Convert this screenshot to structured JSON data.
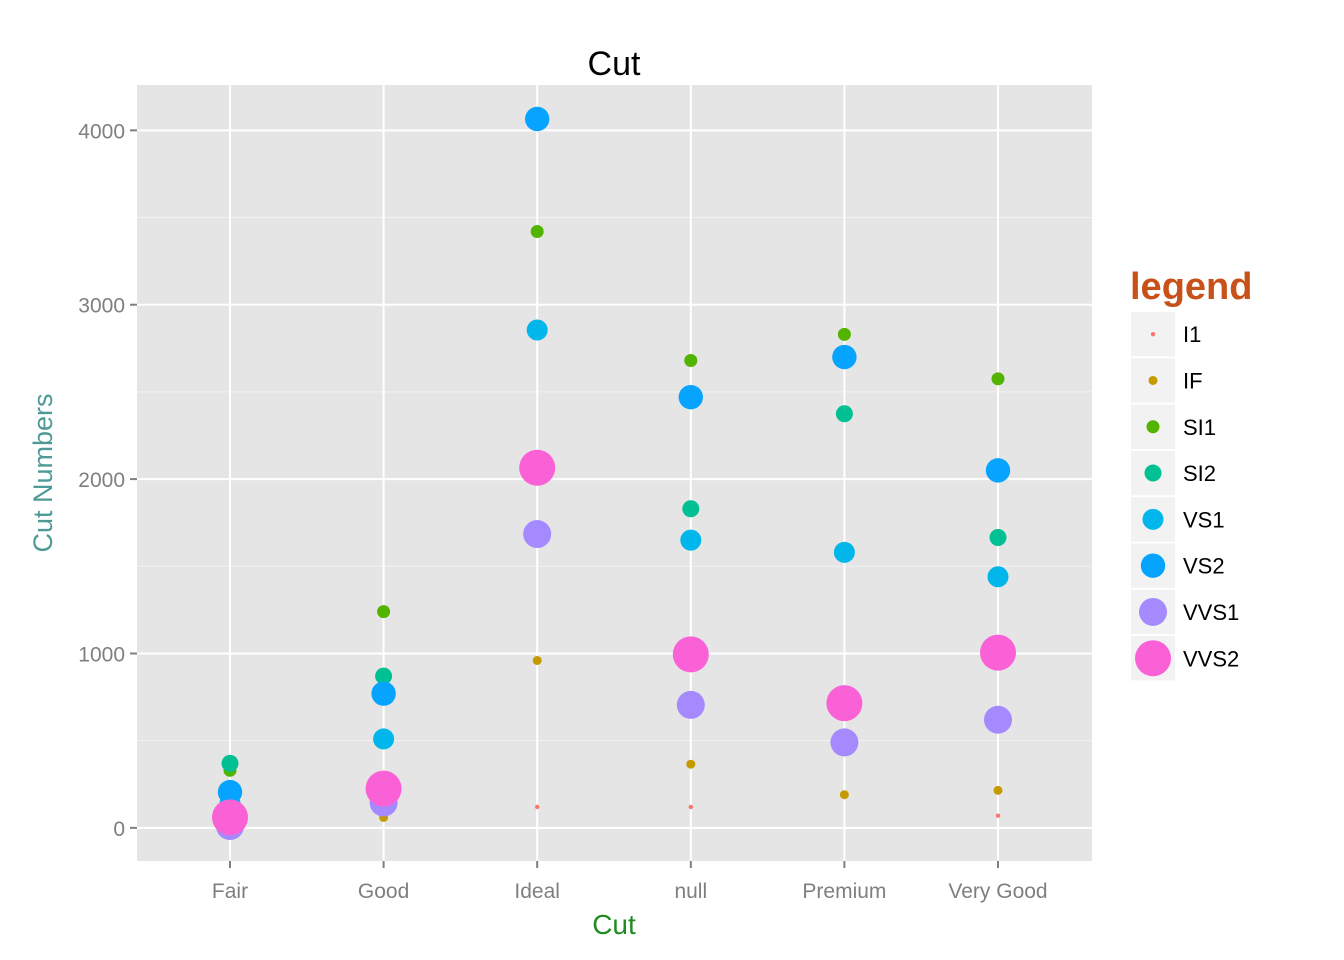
{
  "chart_data": {
    "type": "scatter",
    "title": "Cut",
    "xlabel": "Cut",
    "ylabel": "Cut Numbers",
    "categories": [
      "Fair",
      "Good",
      "Ideal",
      "null",
      "Premium",
      "Very Good"
    ],
    "ylim": [
      -190,
      4260
    ],
    "yticks": [
      0,
      1000,
      2000,
      3000,
      4000
    ],
    "grid": true,
    "legend": {
      "title": "legend",
      "position": "right"
    },
    "series": [
      {
        "name": "I1",
        "color": "#F8766D",
        "size_rank": 1,
        "values": [
          9,
          null,
          120,
          120,
          null,
          70
        ]
      },
      {
        "name": "IF",
        "color": "#C49A00",
        "size_rank": 2,
        "values": [
          9,
          60,
          960,
          365,
          190,
          215
        ]
      },
      {
        "name": "SI1",
        "color": "#53B400",
        "size_rank": 3,
        "values": [
          330,
          1240,
          3420,
          2680,
          2830,
          2575
        ]
      },
      {
        "name": "SI2",
        "color": "#00C094",
        "size_rank": 4,
        "values": [
          370,
          870,
          null,
          1830,
          2375,
          1665
        ]
      },
      {
        "name": "VS1",
        "color": "#00B6EB",
        "size_rank": 5,
        "values": [
          140,
          510,
          2855,
          1650,
          1580,
          1440
        ]
      },
      {
        "name": "VS2",
        "color": "#06A4FF",
        "size_rank": 6,
        "values": [
          205,
          770,
          4065,
          2470,
          2700,
          2050
        ]
      },
      {
        "name": "VVS1",
        "color": "#A58AFF",
        "size_rank": 7,
        "values": [
          10,
          145,
          1685,
          705,
          490,
          620
        ]
      },
      {
        "name": "VVS2",
        "color": "#FB61D7",
        "size_rank": 8,
        "values": [
          60,
          225,
          2065,
          995,
          715,
          1005
        ]
      }
    ],
    "colors": {
      "panel": "#E5E5E5",
      "grid_major": "#FFFFFF",
      "grid_minor": "#F2F2F2",
      "tick_text": "#7F7F7F",
      "ylabel": "#4E9A96",
      "xlabel": "#228B22",
      "legend_title": "#C8511A",
      "legend_key_bg": "#F2F2F2"
    }
  }
}
